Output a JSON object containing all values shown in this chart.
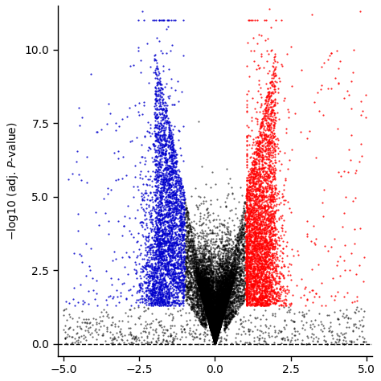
{
  "title": "",
  "xlabel": "",
  "ylabel": "−log10 (adj. P-value)",
  "xlim": [
    -5.2,
    5.2
  ],
  "ylim": [
    -0.4,
    11.5
  ],
  "xticks": [
    -5.0,
    -2.5,
    0.0,
    2.5,
    5.0
  ],
  "yticks": [
    0.0,
    2.5,
    5.0,
    7.5,
    10.0
  ],
  "xticklabels": [
    "−5.0",
    "−2.5",
    "0.0",
    "2.5",
    "5.0"
  ],
  "yticklabels": [
    "0.0",
    "2.5",
    "5.0",
    "7.5",
    "10.0"
  ],
  "dashed_y": 0.0,
  "fc_threshold": 1.0,
  "pval_threshold": 1.3,
  "color_up": "#FF0000",
  "color_down": "#0000CC",
  "color_ns": "#000000",
  "point_size": 2.5,
  "alpha": 0.8,
  "seed": 42,
  "background_color": "#FFFFFF"
}
